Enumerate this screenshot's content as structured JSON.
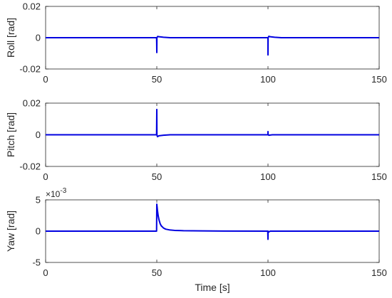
{
  "chart_data": [
    {
      "type": "line",
      "title": "",
      "xlabel": "",
      "ylabel": "Roll [rad]",
      "xlim": [
        0,
        150
      ],
      "ylim": [
        -0.02,
        0.02
      ],
      "xticks": [
        0,
        50,
        100,
        150
      ],
      "yticks": [
        -0.02,
        0,
        0.02
      ],
      "xtick_labels": [
        "0",
        "50",
        "100",
        "150"
      ],
      "ytick_labels": [
        "-0.02",
        "0",
        "0.02"
      ],
      "exponent_label": "",
      "grid": false,
      "color": "#0000e0",
      "series": [
        {
          "x": [
            0,
            49.9,
            49.95,
            50.0,
            50.05,
            50.4,
            51,
            53,
            56,
            100,
            100.0,
            100.05,
            100.4,
            101,
            103,
            106,
            150
          ],
          "y": [
            0,
            0,
            -0.003,
            -0.0095,
            0,
            0.0008,
            0.0006,
            0.0003,
            0,
            0,
            -0.011,
            0,
            0.0009,
            0.0006,
            0.0003,
            0,
            0
          ]
        }
      ]
    },
    {
      "type": "line",
      "title": "",
      "xlabel": "",
      "ylabel": "Pitch [rad]",
      "xlim": [
        0,
        150
      ],
      "ylim": [
        -0.02,
        0.02
      ],
      "xticks": [
        0,
        50,
        100,
        150
      ],
      "yticks": [
        -0.02,
        0,
        0.02
      ],
      "xtick_labels": [
        "0",
        "50",
        "100",
        "150"
      ],
      "ytick_labels": [
        "-0.02",
        "0",
        "0.02"
      ],
      "exponent_label": "",
      "grid": false,
      "color": "#0000e0",
      "series": [
        {
          "x": [
            0,
            49.9,
            50.0,
            50.05,
            50.3,
            51,
            53,
            56,
            100,
            100.0,
            100.05,
            100.4,
            102,
            150
          ],
          "y": [
            0,
            0,
            0.016,
            0,
            -0.0012,
            -0.0006,
            -0.0003,
            0,
            0,
            0.002,
            0,
            -0.0003,
            0,
            0
          ]
        }
      ]
    },
    {
      "type": "line",
      "title": "",
      "xlabel": "Time [s]",
      "ylabel": "Yaw [rad]",
      "xlim": [
        0,
        150
      ],
      "ylim": [
        -5,
        5
      ],
      "xticks": [
        0,
        50,
        100,
        150
      ],
      "yticks": [
        -5,
        0,
        5
      ],
      "xtick_labels": [
        "0",
        "50",
        "100",
        "150"
      ],
      "ytick_labels": [
        "-5",
        "0",
        "5"
      ],
      "exponent_label": "×10",
      "exponent_power": "-3",
      "grid": false,
      "color": "#0000e0",
      "series": [
        {
          "x": [
            0,
            49.9,
            50.0,
            50.3,
            50.6,
            51,
            51.5,
            52,
            53,
            54,
            56,
            58,
            62,
            70,
            80,
            99.9,
            100.0,
            100.05,
            100.3,
            101,
            150
          ],
          "y": [
            0,
            0,
            4.3,
            3.3,
            2.5,
            1.8,
            1.2,
            0.85,
            0.5,
            0.32,
            0.18,
            0.12,
            0.07,
            0.04,
            0.02,
            0,
            -1.3,
            0,
            -0.15,
            0,
            0
          ]
        }
      ]
    }
  ]
}
